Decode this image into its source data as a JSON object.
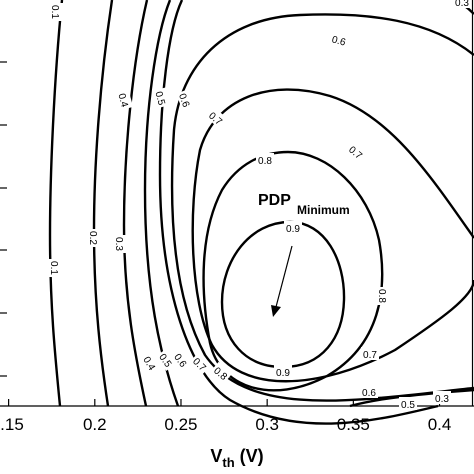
{
  "chart_data": {
    "type": "contour",
    "xlabel_main": "V",
    "xlabel_sub": "th",
    "xlabel_unit": " (V)",
    "x_ticks": [
      0.15,
      0.2,
      0.25,
      0.3,
      0.35,
      0.4
    ],
    "x_tick_labels": [
      ".15",
      "0.2",
      "0.25",
      "0.3",
      "0.35",
      "0.4"
    ],
    "xlim": [
      0.145,
      0.42
    ],
    "levels": [
      {
        "value": 0.1,
        "label": "0.1"
      },
      {
        "value": 0.2,
        "label": "0.2"
      },
      {
        "value": 0.3,
        "label": "0.3"
      },
      {
        "value": 0.4,
        "label": "0.4"
      },
      {
        "value": 0.5,
        "label": "0.5"
      },
      {
        "value": 0.6,
        "label": "0.6"
      },
      {
        "value": 0.7,
        "label": "0.7"
      },
      {
        "value": 0.8,
        "label": "0.8"
      },
      {
        "value": 0.9,
        "label": "0.9"
      }
    ],
    "contour_labels": [
      {
        "level": "0.1",
        "text": "0.1"
      },
      {
        "level": "0.1",
        "text": "0.1"
      },
      {
        "level": "0.2",
        "text": "0.2"
      },
      {
        "level": "0.3",
        "text": "0.3"
      },
      {
        "level": "0.4",
        "text": "0.4"
      },
      {
        "level": "0.4",
        "text": "0.4"
      },
      {
        "level": "0.5",
        "text": "0.5"
      },
      {
        "level": "0.5",
        "text": "0.5"
      },
      {
        "level": "0.5",
        "text": "0.5"
      },
      {
        "level": "0.6",
        "text": "0.6"
      },
      {
        "level": "0.6",
        "text": "0.6"
      },
      {
        "level": "0.6",
        "text": "0.6"
      },
      {
        "level": "0.6",
        "text": "0.6"
      },
      {
        "level": "0.7",
        "text": "0.7"
      },
      {
        "level": "0.7",
        "text": "0.7"
      },
      {
        "level": "0.7",
        "text": "0.7"
      },
      {
        "level": "0.7",
        "text": "0.7"
      },
      {
        "level": "0.8",
        "text": "0.8"
      },
      {
        "level": "0.8",
        "text": "0.8"
      },
      {
        "level": "0.8",
        "text": "0.8"
      },
      {
        "level": "0.9",
        "text": "0.9"
      },
      {
        "level": "0.9",
        "text": "0.9"
      },
      {
        "level": "0.3",
        "text": "0.3"
      },
      {
        "level": "0.3",
        "text": "0.3"
      }
    ],
    "annotation": {
      "main": "PDP",
      "sub": "Minimum"
    },
    "grid": false
  }
}
